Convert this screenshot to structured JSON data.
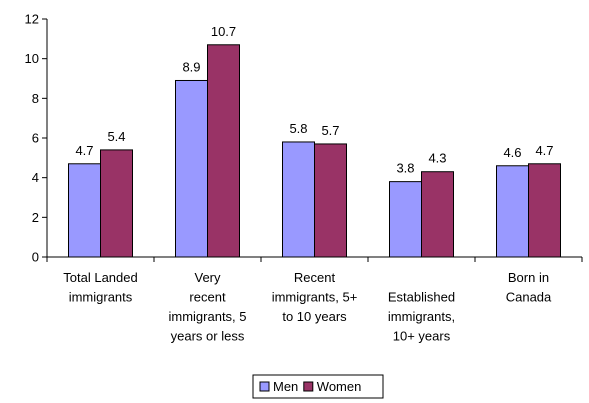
{
  "chart_data": {
    "type": "bar",
    "title": "",
    "xlabel": "",
    "ylabel": "",
    "ylim": [
      0,
      12
    ],
    "yticks": [
      0,
      2,
      4,
      6,
      8,
      10,
      12
    ],
    "grid": false,
    "legend_position": "bottom",
    "categories": [
      [
        "Total Landed",
        "immigrants"
      ],
      [
        "Very",
        "recent",
        "immigrants, 5",
        "years or less"
      ],
      [
        "Recent",
        "immigrants, 5+",
        "to 10 years"
      ],
      [
        "",
        "Established",
        "immigrants,",
        "10+ years"
      ],
      [
        "Born in",
        "Canada"
      ]
    ],
    "series": [
      {
        "name": "Men",
        "color": "#9999ff",
        "values": [
          4.7,
          8.9,
          5.8,
          3.8,
          4.6
        ],
        "labels": [
          "4.7",
          "8.9",
          "5.8",
          "3.8",
          "4.6"
        ]
      },
      {
        "name": "Women",
        "color": "#993366",
        "values": [
          5.4,
          10.7,
          5.7,
          4.3,
          4.7
        ],
        "labels": [
          "5.4",
          "10.7",
          "5.7",
          "4.3",
          "4.7"
        ]
      }
    ]
  }
}
